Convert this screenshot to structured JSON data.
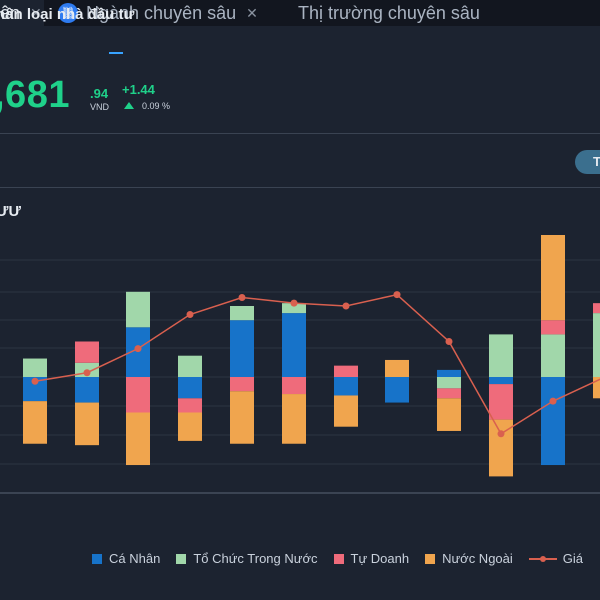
{
  "tabs": [
    {
      "label": "ên",
      "active": true
    },
    {
      "label": "Ngành chuyên sâu",
      "icon": "link-icon"
    },
    {
      "label": "Thị trường chuyên sâu"
    }
  ],
  "subtab": {
    "label": "hân loại nhà đầu tư"
  },
  "quote": {
    "price": ",681",
    "decimal": ".94",
    "unit": "VND",
    "change": "+1.44",
    "change_pct": "0.09 %",
    "color_up": "#1fd18a"
  },
  "pill": {
    "label": "T"
  },
  "section": {
    "title": "ƯƯ"
  },
  "colors": {
    "ca_nhan": "#1773c9",
    "to_chuc": "#a1d7aa",
    "tu_doanh": "#ef6b7b",
    "nuoc_ngoai": "#f0a54e",
    "gia": "#d9604f"
  },
  "chart_data": {
    "type": "bar",
    "stacked": true,
    "grid": true,
    "series": [
      {
        "name": "Cá Nhân",
        "values": [
          -17,
          -18,
          35,
          -15,
          40,
          45,
          -13,
          -18,
          5,
          -5,
          -62,
          0
        ]
      },
      {
        "name": "Tổ Chức Trong Nước",
        "values": [
          13,
          10,
          25,
          15,
          10,
          7,
          0,
          0,
          -8,
          30,
          30,
          45
        ]
      },
      {
        "name": "Tự Doanh",
        "values": [
          0,
          15,
          -25,
          -10,
          -10,
          -12,
          8,
          0,
          -7,
          -25,
          10,
          7
        ]
      },
      {
        "name": "Nước Ngoài",
        "values": [
          -30,
          -30,
          -37,
          -20,
          -37,
          -35,
          -22,
          12,
          -23,
          -40,
          60,
          -15
        ]
      },
      {
        "name": "Giá",
        "type": "line",
        "values": [
          -3,
          3,
          20,
          44,
          56,
          52,
          50,
          58,
          25,
          -40,
          -17,
          0
        ]
      }
    ],
    "legend": [
      "Cá Nhân",
      "Tổ Chức Trong Nước",
      "Tự Doanh",
      "Nước Ngoài",
      "Giá"
    ],
    "legend_position": "bottom"
  }
}
